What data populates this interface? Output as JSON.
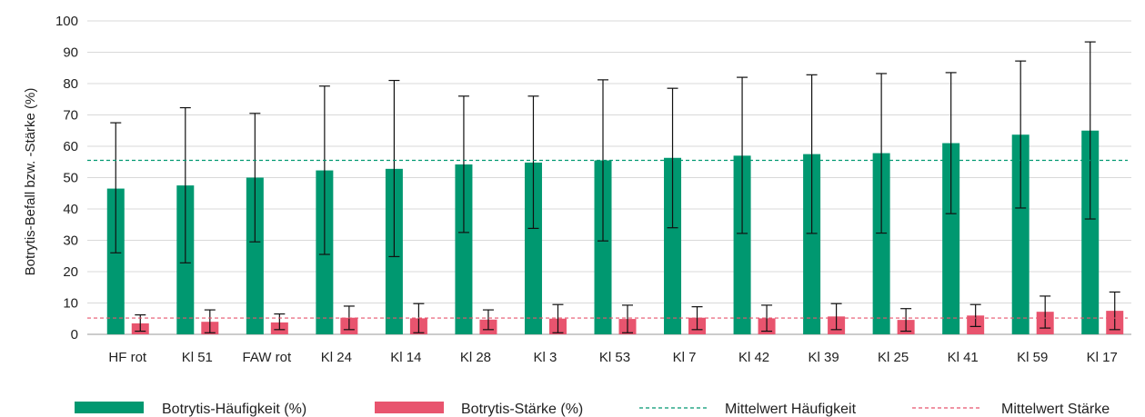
{
  "chart_data": {
    "type": "bar",
    "ylabel": "Botrytis-Befall bzw. -Stärke (%)",
    "xlabel": "",
    "ylim": [
      0,
      100
    ],
    "yticks": [
      0,
      10,
      20,
      30,
      40,
      50,
      60,
      70,
      80,
      90,
      100
    ],
    "grid": true,
    "legend_position": "bottom",
    "categories": [
      "HF rot",
      "Kl 51",
      "FAW rot",
      "Kl 24",
      "Kl 14",
      "Kl 28",
      "Kl 3",
      "Kl 53",
      "Kl 7",
      "Kl 42",
      "Kl 39",
      "Kl 25",
      "Kl 41",
      "Kl 59",
      "Kl 17"
    ],
    "series": [
      {
        "name": "Botrytis-Häufigkeit (%)",
        "color": "#009870",
        "values": [
          46.5,
          47.5,
          50,
          52.3,
          52.8,
          54.2,
          54.8,
          55.5,
          56.3,
          57,
          57.5,
          57.8,
          61,
          63.7,
          65
        ],
        "error_low": [
          26,
          22.8,
          29.5,
          25.5,
          24.8,
          32.5,
          33.8,
          29.8,
          34,
          32.2,
          32.2,
          32.3,
          38.5,
          40.3,
          36.8
        ],
        "error_high": [
          67.5,
          72.3,
          70.5,
          79.2,
          81,
          76,
          76,
          81.2,
          78.5,
          82,
          82.8,
          83.2,
          83.5,
          87.2,
          93.3
        ]
      },
      {
        "name": "Botrytis-Stärke (%)",
        "color": "#e8546e",
        "values": [
          3.5,
          4,
          3.8,
          5.3,
          5.1,
          4.7,
          5,
          4.9,
          5.3,
          5.1,
          5.7,
          4.6,
          6,
          7.2,
          7.5
        ],
        "error_low": [
          1,
          0.5,
          1.5,
          1.5,
          0.5,
          1.5,
          0.5,
          0.5,
          1.5,
          1,
          1.5,
          1,
          2.5,
          2,
          1.5
        ],
        "error_high": [
          6.2,
          7.8,
          6.5,
          9,
          9.8,
          7.8,
          9.5,
          9.3,
          8.8,
          9.3,
          9.8,
          8.2,
          9.5,
          12.2,
          13.5
        ]
      }
    ],
    "reference_lines": [
      {
        "name": "Mittelwert Häufigkeit",
        "value": 55.5,
        "color": "#009870",
        "style": "dashed"
      },
      {
        "name": "Mittelwert Stärke",
        "value": 5.2,
        "color": "#e8546e",
        "style": "dashed"
      }
    ]
  }
}
